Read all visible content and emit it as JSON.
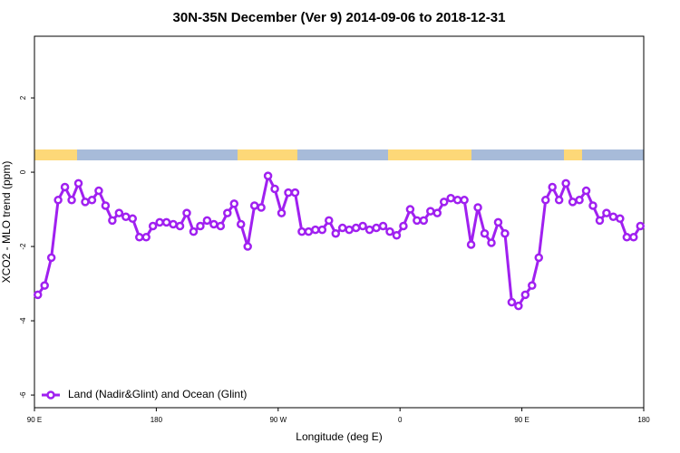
{
  "chart_data": {
    "type": "line",
    "title": "30N-35N December (Ver 9)   2014-09-06 to 2018-12-31",
    "xlabel": "Longitude (deg E)",
    "ylabel": "XCO2 - MLO trend (ppm)",
    "x": [
      92.5,
      97.5,
      102.5,
      107.5,
      112.5,
      117.5,
      122.5,
      127.5,
      132.5,
      137.5,
      142.5,
      147.5,
      152.5,
      157.5,
      162.5,
      167.5,
      172.5,
      177.5,
      182.5,
      187.5,
      192.5,
      197.5,
      202.5,
      207.5,
      212.5,
      217.5,
      222.5,
      227.5,
      232.5,
      237.5,
      242.5,
      247.5,
      252.5,
      257.5,
      262.5,
      267.5,
      272.5,
      277.5,
      282.5,
      287.5,
      292.5,
      297.5,
      302.5,
      307.5,
      312.5,
      317.5,
      322.5,
      327.5,
      332.5,
      337.5,
      342.5,
      347.5,
      352.5,
      357.5,
      362.5,
      367.5,
      372.5,
      377.5,
      382.5,
      387.5,
      392.5,
      397.5,
      402.5,
      407.5,
      412.5,
      417.5,
      422.5,
      427.5,
      432.5,
      437.5,
      442.5,
      447.5,
      452.5,
      457.5,
      462.5,
      467.5,
      472.5,
      477.5,
      482.5,
      487.5,
      492.5,
      497.5,
      502.5,
      507.5,
      512.5,
      517.5,
      522.5,
      527.5,
      532.5,
      537.5
    ],
    "series": [
      {
        "name": "Land (Nadir&Glint) and Ocean (Glint)",
        "color": "#a020f0",
        "values": [
          -3.3,
          -3.05,
          -2.3,
          -0.75,
          -0.4,
          -0.75,
          -0.3,
          -0.8,
          -0.75,
          -0.5,
          -0.9,
          -1.3,
          -1.1,
          -1.2,
          -1.25,
          -1.75,
          -1.75,
          -1.45,
          -1.35,
          -1.35,
          -1.4,
          -1.45,
          -1.1,
          -1.6,
          -1.45,
          -1.3,
          -1.4,
          -1.45,
          -1.1,
          -0.85,
          -1.4,
          -2.0,
          -0.9,
          -0.95,
          -0.1,
          -0.45,
          -1.1,
          -0.55,
          -0.55,
          -1.6,
          -1.6,
          -1.55,
          -1.55,
          -1.3,
          -1.65,
          -1.5,
          -1.55,
          -1.5,
          -1.45,
          -1.55,
          -1.5,
          -1.45,
          -1.6,
          -1.7,
          -1.45,
          -1.0,
          -1.3,
          -1.3,
          -1.05,
          -1.1,
          -0.8,
          -0.7,
          -0.75,
          -0.75,
          -1.95,
          -0.95,
          -1.65,
          -1.9,
          -1.35,
          -1.65,
          -3.5,
          -3.6,
          -3.3,
          -3.05,
          -2.3,
          -0.75,
          -0.4,
          -0.75,
          -0.3,
          -0.8,
          -0.75,
          -0.5,
          -0.9,
          -1.3,
          -1.1,
          -1.2,
          -1.25,
          -1.75,
          -1.75,
          -1.45
        ]
      }
    ],
    "xlim": [
      90,
      540
    ],
    "xticks": [
      {
        "value": 90,
        "label": "90 E"
      },
      180,
      {
        "value": 270,
        "label": "90 W"
      },
      {
        "value": 360,
        "label": "0"
      },
      {
        "value": 450,
        "label": "90 E"
      },
      {
        "value": 540,
        "label": "180"
      }
    ],
    "ylim": [
      -6.34,
      3.66
    ],
    "yticks": [
      -6,
      -4,
      -2,
      0,
      2
    ],
    "legend": "bottomleft"
  }
}
